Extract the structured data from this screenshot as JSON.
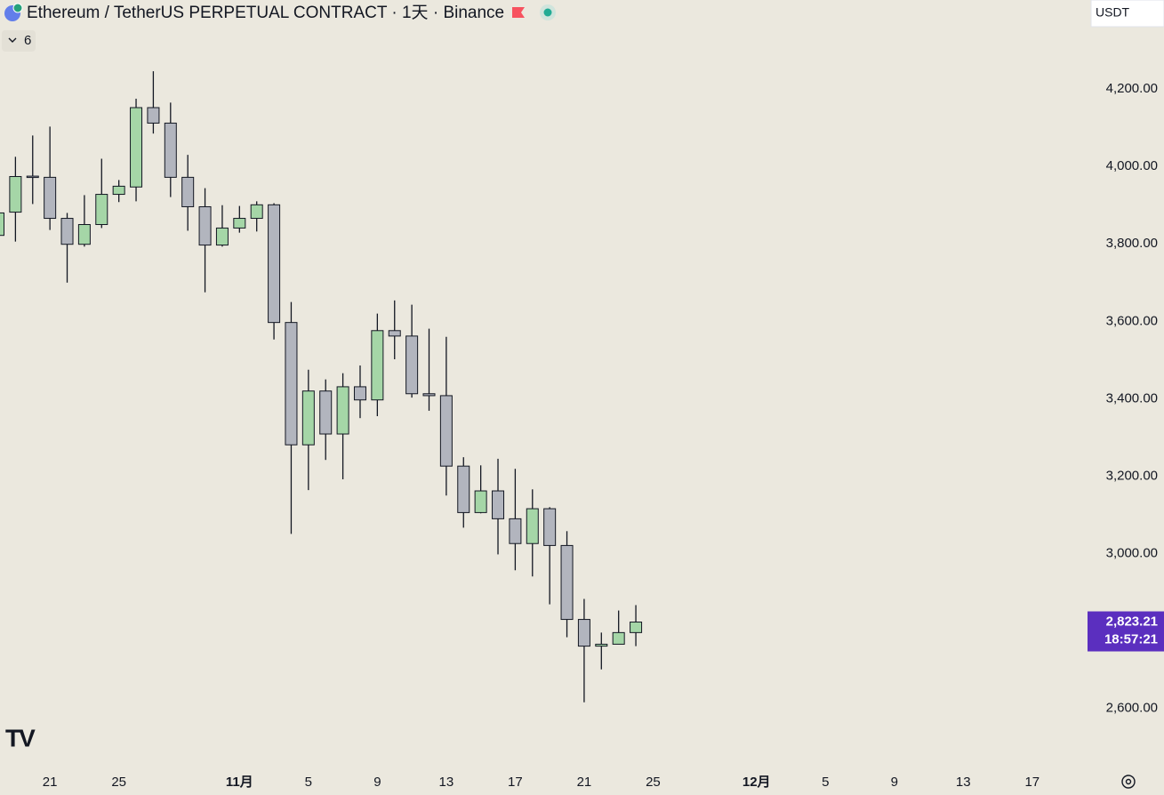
{
  "chart_data": {
    "type": "candlestick",
    "title": "Ethereum / TetherUS PERPETUAL CONTRACT · 1天 · Binance",
    "indicator_count": "6",
    "currency": "USDT",
    "categories": [
      null,
      null,
      null,
      "21",
      null,
      null,
      null,
      "25",
      null,
      null,
      null,
      null,
      null,
      null,
      "11月",
      null,
      null,
      null,
      "5",
      null,
      null,
      null,
      "9",
      null,
      null,
      null,
      "13",
      null,
      null,
      null,
      "17",
      null,
      null,
      null,
      "21",
      null,
      null,
      null,
      "25",
      null,
      null,
      null,
      null,
      null,
      "12月",
      null,
      null,
      null,
      "5",
      null,
      null,
      null,
      "9",
      null,
      null,
      null,
      "13",
      null,
      null,
      null,
      "17",
      null,
      null,
      null
    ],
    "series": [
      {
        "name": "Ethereum / TetherUS",
        "up_color": "#a5d6a7",
        "down_color": "#b2b5be",
        "open": [
          3822,
          3882,
          3975,
          3972,
          3866,
          3799,
          3850,
          3928,
          3947,
          4152,
          4112,
          3972,
          3896,
          3797,
          3841,
          3866,
          3901,
          3597,
          3281,
          3420,
          3309,
          3431,
          3397,
          3576,
          3562,
          3413,
          3408,
          3226,
          3106,
          3162,
          3090,
          3026,
          3116,
          3021,
          2830,
          2761,
          2766,
          2796,
          null,
          null,
          null,
          null,
          null,
          null,
          null,
          null,
          null,
          null,
          null,
          null,
          null,
          null,
          null,
          null,
          null,
          null,
          null,
          null,
          null,
          null,
          null,
          null,
          null,
          null
        ],
        "high": [
          3900,
          4025,
          4080,
          4103,
          3880,
          3926,
          4020,
          3965,
          4175,
          4246,
          4165,
          4030,
          3944,
          3900,
          3898,
          3910,
          3905,
          3650,
          3475,
          3450,
          3466,
          3486,
          3620,
          3654,
          3643,
          3581,
          3560,
          3249,
          3228,
          3245,
          3219,
          3166,
          3120,
          3058,
          2883,
          2796,
          2853,
          2867,
          null,
          null,
          null,
          null,
          null,
          null,
          null,
          null,
          null,
          null,
          null,
          null,
          null,
          null,
          null,
          null,
          null,
          null,
          null,
          null,
          null,
          null,
          null,
          null,
          null,
          null
        ],
        "low": [
          3800,
          3806,
          3903,
          3836,
          3700,
          3793,
          3841,
          3908,
          3910,
          4085,
          3921,
          3834,
          3675,
          3793,
          3829,
          3832,
          3553,
          3051,
          3164,
          3242,
          3192,
          3350,
          3355,
          3502,
          3403,
          3369,
          3150,
          3067,
          3104,
          2998,
          2957,
          2941,
          2869,
          2784,
          2616,
          2701,
          2766,
          2761,
          null,
          null,
          null,
          null,
          null,
          null,
          null,
          null,
          null,
          null,
          null,
          null,
          null,
          null,
          null,
          null,
          null,
          null,
          null,
          null,
          null,
          null,
          null,
          null,
          null,
          null
        ],
        "close": [
          3880,
          3974,
          3972,
          3866,
          3799,
          3850,
          3928,
          3949,
          4152,
          4112,
          3972,
          3896,
          3797,
          3841,
          3866,
          3901,
          3597,
          3281,
          3420,
          3309,
          3431,
          3397,
          3576,
          3562,
          3413,
          3408,
          3226,
          3106,
          3162,
          3090,
          3026,
          3116,
          3021,
          2830,
          2761,
          2766,
          2796,
          2823.21,
          null,
          null,
          null,
          null,
          null,
          null,
          null,
          null,
          null,
          null,
          null,
          null,
          null,
          null,
          null,
          null,
          null,
          null,
          null,
          null,
          null,
          null,
          null,
          null,
          null,
          null
        ]
      }
    ],
    "last_price": {
      "value": 2823.21,
      "label": "2,823.21"
    },
    "countdown": "18:57:21",
    "last_price_color": "#5b2fbf",
    "ylim": [
      2450,
      4430
    ],
    "yticks": [
      {
        "value": 2600,
        "label": "2,600.00"
      },
      {
        "value": 2800,
        "label": "2,800.00"
      },
      {
        "value": 3000,
        "label": "3,000.00"
      },
      {
        "value": 3200,
        "label": "3,200.00"
      },
      {
        "value": 3400,
        "label": "3,400.00"
      },
      {
        "value": 3600,
        "label": "3,600.00"
      },
      {
        "value": 3800,
        "label": "3,800.00"
      },
      {
        "value": 4000,
        "label": "4,000.00"
      },
      {
        "value": 4200,
        "label": "4,200.00"
      }
    ],
    "grid": false
  }
}
